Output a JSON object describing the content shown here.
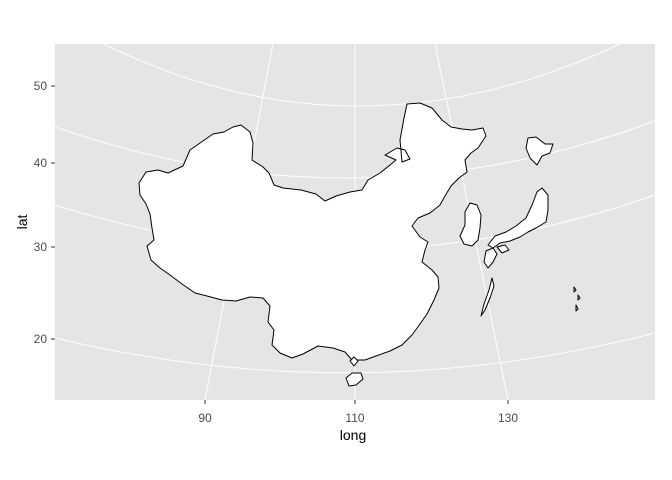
{
  "chart_data": {
    "type": "map",
    "projection": "azimuthal",
    "xlabel": "long",
    "ylabel": "lat",
    "x_ticks": [
      "90",
      "110",
      "130"
    ],
    "y_ticks": [
      "20",
      "30",
      "40",
      "50"
    ],
    "regions": [
      "China",
      "Taiwan",
      "Korea",
      "Japan"
    ],
    "colors": {
      "panel_background": "#e5e5e5",
      "grid": "#ffffff",
      "land_fill": "#ffffff",
      "land_border": "#000000",
      "tick_label": "#4d4d4d"
    }
  }
}
